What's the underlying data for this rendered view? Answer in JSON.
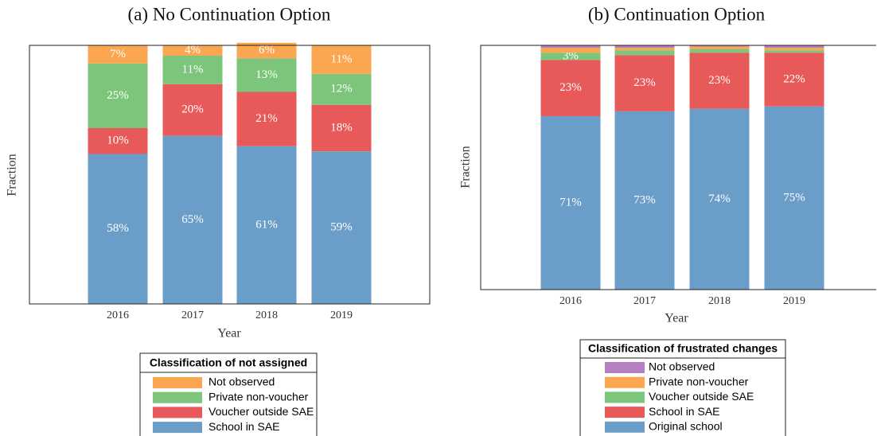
{
  "chart_data": [
    {
      "type": "stacked_bar",
      "title": "(a) No Continuation Option",
      "xlabel": "Year",
      "ylabel": "Fraction",
      "categories": [
        "2016",
        "2017",
        "2018",
        "2019"
      ],
      "ylim": [
        0,
        100
      ],
      "legend_title": "Classification of not assigned",
      "series": [
        {
          "name": "School in SAE",
          "color": "#6a9ec8",
          "values": [
            58,
            65,
            61,
            59
          ],
          "value_labels": [
            "58%",
            "65%",
            "61%",
            "59%"
          ]
        },
        {
          "name": "Voucher outside SAE",
          "color": "#e85a5a",
          "values": [
            10,
            20,
            21,
            18
          ],
          "value_labels": [
            "10%",
            "20%",
            "21%",
            "18%"
          ]
        },
        {
          "name": "Private non-voucher",
          "color": "#7dc57a",
          "values": [
            25,
            11,
            13,
            12
          ],
          "value_labels": [
            "25%",
            "11%",
            "13%",
            "12%"
          ]
        },
        {
          "name": "Not observed",
          "color": "#fba650",
          "values": [
            7,
            4,
            6,
            11
          ],
          "value_labels": [
            "7%",
            "4%",
            "6%",
            "11%"
          ]
        }
      ]
    },
    {
      "type": "stacked_bar",
      "title": "(b) Continuation Option",
      "xlabel": "Year",
      "ylabel": "Fraction",
      "categories": [
        "2016",
        "2017",
        "2018",
        "2019"
      ],
      "ylim": [
        0,
        100
      ],
      "legend_title": "Classification of frustrated changes",
      "series": [
        {
          "name": "Original school",
          "color": "#6a9ec8",
          "values": [
            71,
            73,
            74,
            75
          ],
          "value_labels": [
            "71%",
            "73%",
            "74%",
            "75%"
          ]
        },
        {
          "name": "School in SAE",
          "color": "#e85a5a",
          "values": [
            23,
            23,
            23,
            22
          ],
          "value_labels": [
            "23%",
            "23%",
            "23%",
            "22%"
          ]
        },
        {
          "name": "Voucher outside SAE",
          "color": "#7dc57a",
          "values": [
            3,
            2,
            1.5,
            1
          ],
          "value_labels": [
            "3%",
            null,
            null,
            null
          ]
        },
        {
          "name": "Private non-voucher",
          "color": "#fba650",
          "values": [
            2,
            1,
            1,
            1
          ],
          "value_labels": [
            null,
            null,
            null,
            null
          ]
        },
        {
          "name": "Not observed",
          "color": "#b57fc1",
          "values": [
            1,
            1,
            0.5,
            1
          ],
          "value_labels": [
            null,
            null,
            null,
            null
          ]
        }
      ]
    }
  ]
}
